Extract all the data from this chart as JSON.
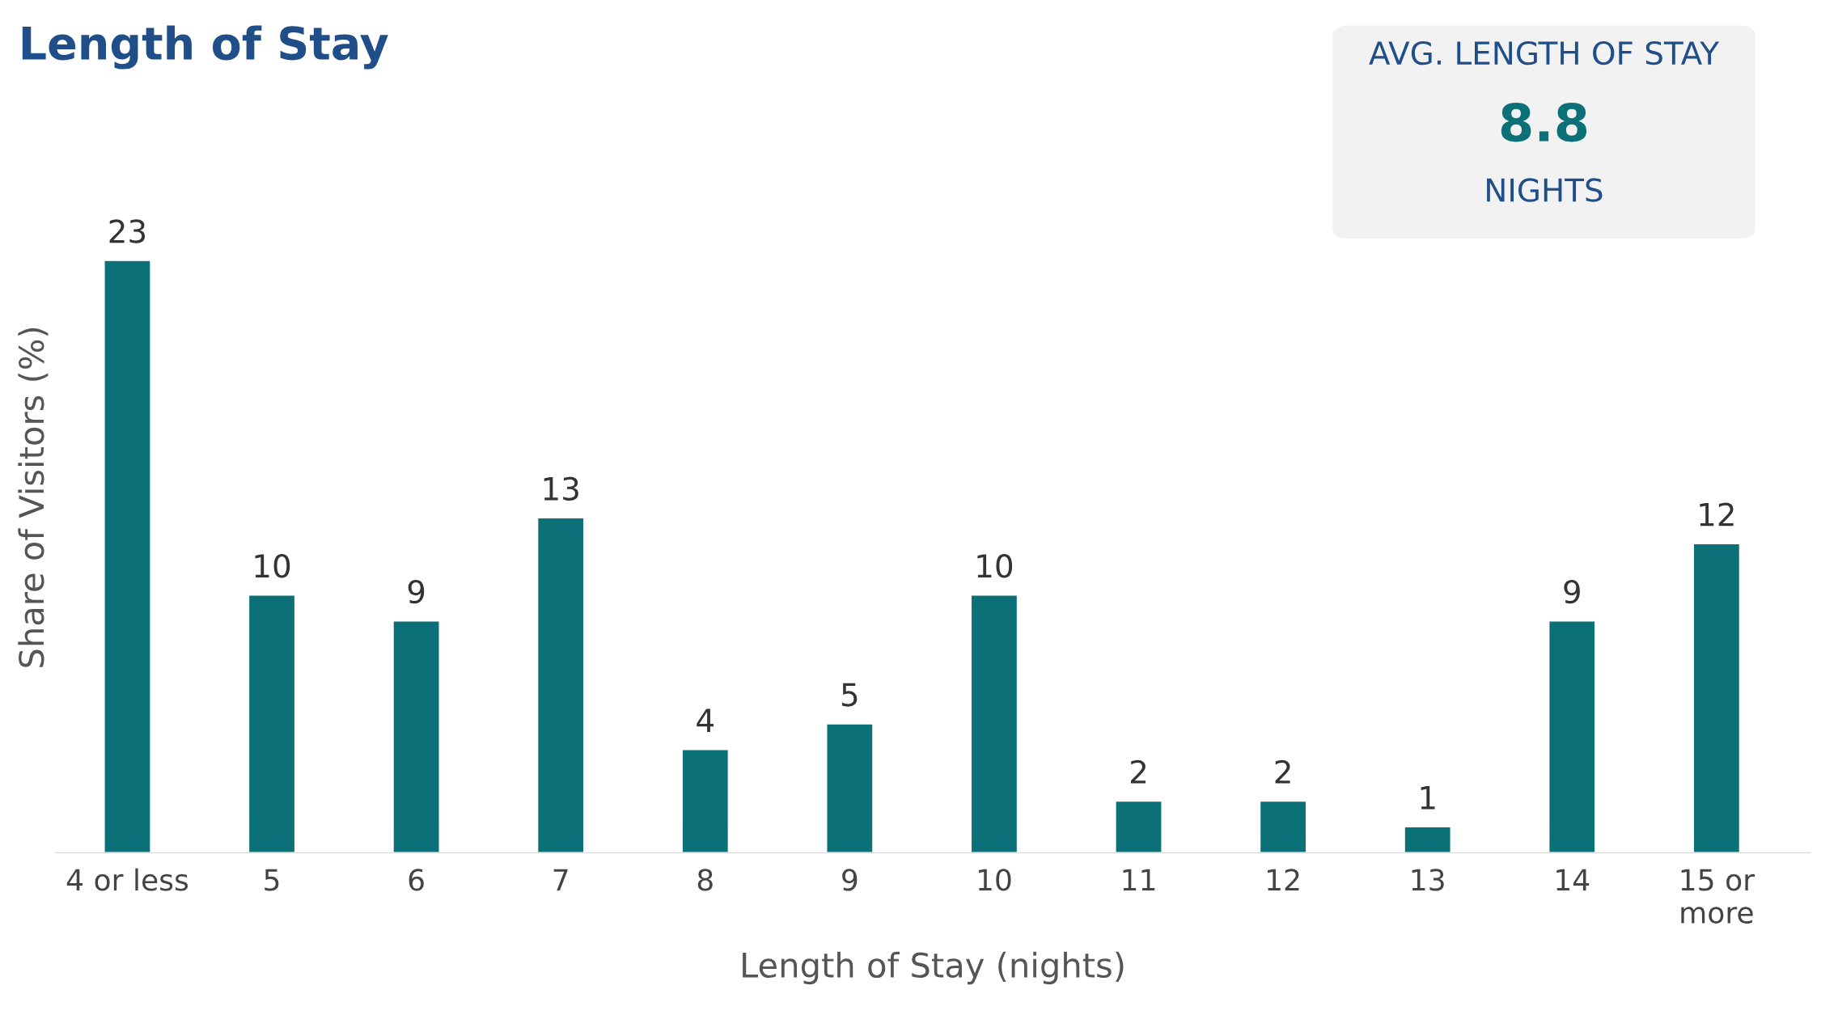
{
  "chart_data": {
    "type": "bar",
    "title": "Length of Stay",
    "xlabel": "Length of Stay (nights)",
    "ylabel": "Share of Visitors (%)",
    "categories": [
      "4 or less",
      "5",
      "6",
      "7",
      "8",
      "9",
      "10",
      "11",
      "12",
      "13",
      "14",
      "15 or\nmore"
    ],
    "values": [
      23,
      10,
      9,
      13,
      4,
      5,
      10,
      2,
      2,
      1,
      9,
      12
    ],
    "color": "#0b7077",
    "data_labels": true,
    "tick_labels": "x",
    "grid": false,
    "legend": false,
    "annotations": [
      "AVG. LENGTH OF STAY",
      "8.8",
      "NIGHTS"
    ]
  }
}
